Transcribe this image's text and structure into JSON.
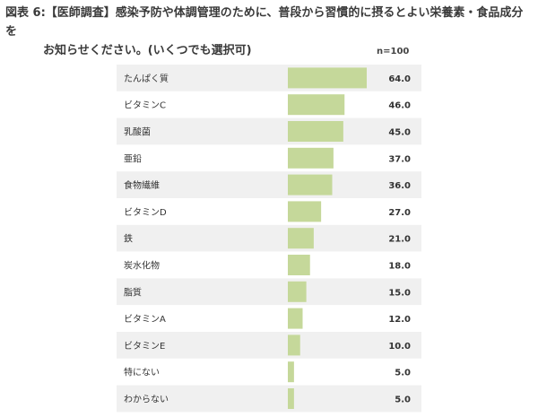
{
  "title_line1": "図表 6:【医師調査】感染予防や体調管理のために、普段から習慣的に摂るとよい栄養素・食品成分を",
  "title_line2": "お知らせください。(いくつでも選択可)",
  "n_label": "n=100",
  "colors": {
    "bar": "#c5d89a",
    "row_even": "#f0f0f0",
    "row_odd": "#ffffff"
  },
  "chart_data": {
    "type": "bar",
    "orientation": "horizontal",
    "categories": [
      "たんぱく質",
      "ビタミンC",
      "乳酸菌",
      "亜鉛",
      "食物繊維",
      "ビタミンD",
      "鉄",
      "炭水化物",
      "脂質",
      "ビタミンA",
      "ビタミンE",
      "特にない",
      "わからない"
    ],
    "values": [
      64.0,
      46.0,
      45.0,
      37.0,
      36.0,
      27.0,
      21.0,
      18.0,
      15.0,
      12.0,
      10.0,
      5.0,
      5.0
    ],
    "value_labels": [
      "64.0",
      "46.0",
      "45.0",
      "37.0",
      "36.0",
      "27.0",
      "21.0",
      "18.0",
      "15.0",
      "12.0",
      "10.0",
      "5.0",
      "5.0"
    ],
    "title": "",
    "xlim": [
      0,
      100
    ]
  }
}
